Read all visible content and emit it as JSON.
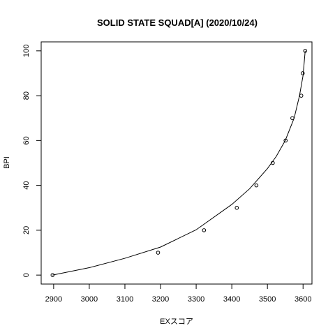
{
  "chart_data": {
    "type": "scatter",
    "title": "SOLID STATE SQUAD[A] (2020/10/24)",
    "xlabel": "EXスコア",
    "ylabel": "BPI",
    "xlim": [
      2865,
      3625
    ],
    "ylim": [
      -4,
      104
    ],
    "xticks": [
      2900,
      3000,
      3100,
      3200,
      3300,
      3400,
      3500,
      3600
    ],
    "yticks": [
      0,
      20,
      40,
      60,
      80,
      100
    ],
    "grid": false,
    "legend": "none",
    "series": [
      {
        "kind": "points",
        "x": [
          2897,
          3193,
          3322,
          3414,
          3469,
          3515,
          3551,
          3570,
          3595,
          3599,
          3606
        ],
        "y": [
          0,
          10,
          20,
          30,
          40,
          50,
          60,
          70,
          80,
          90,
          100
        ]
      },
      {
        "kind": "curve",
        "x": [
          2897,
          3000,
          3100,
          3200,
          3300,
          3400,
          3450,
          3500,
          3525,
          3550,
          3575,
          3590,
          3600,
          3606
        ],
        "y": [
          0,
          3.3,
          7.5,
          12.5,
          20.2,
          31.5,
          38.5,
          47.5,
          53,
          60,
          70,
          80,
          89,
          100
        ]
      }
    ]
  }
}
